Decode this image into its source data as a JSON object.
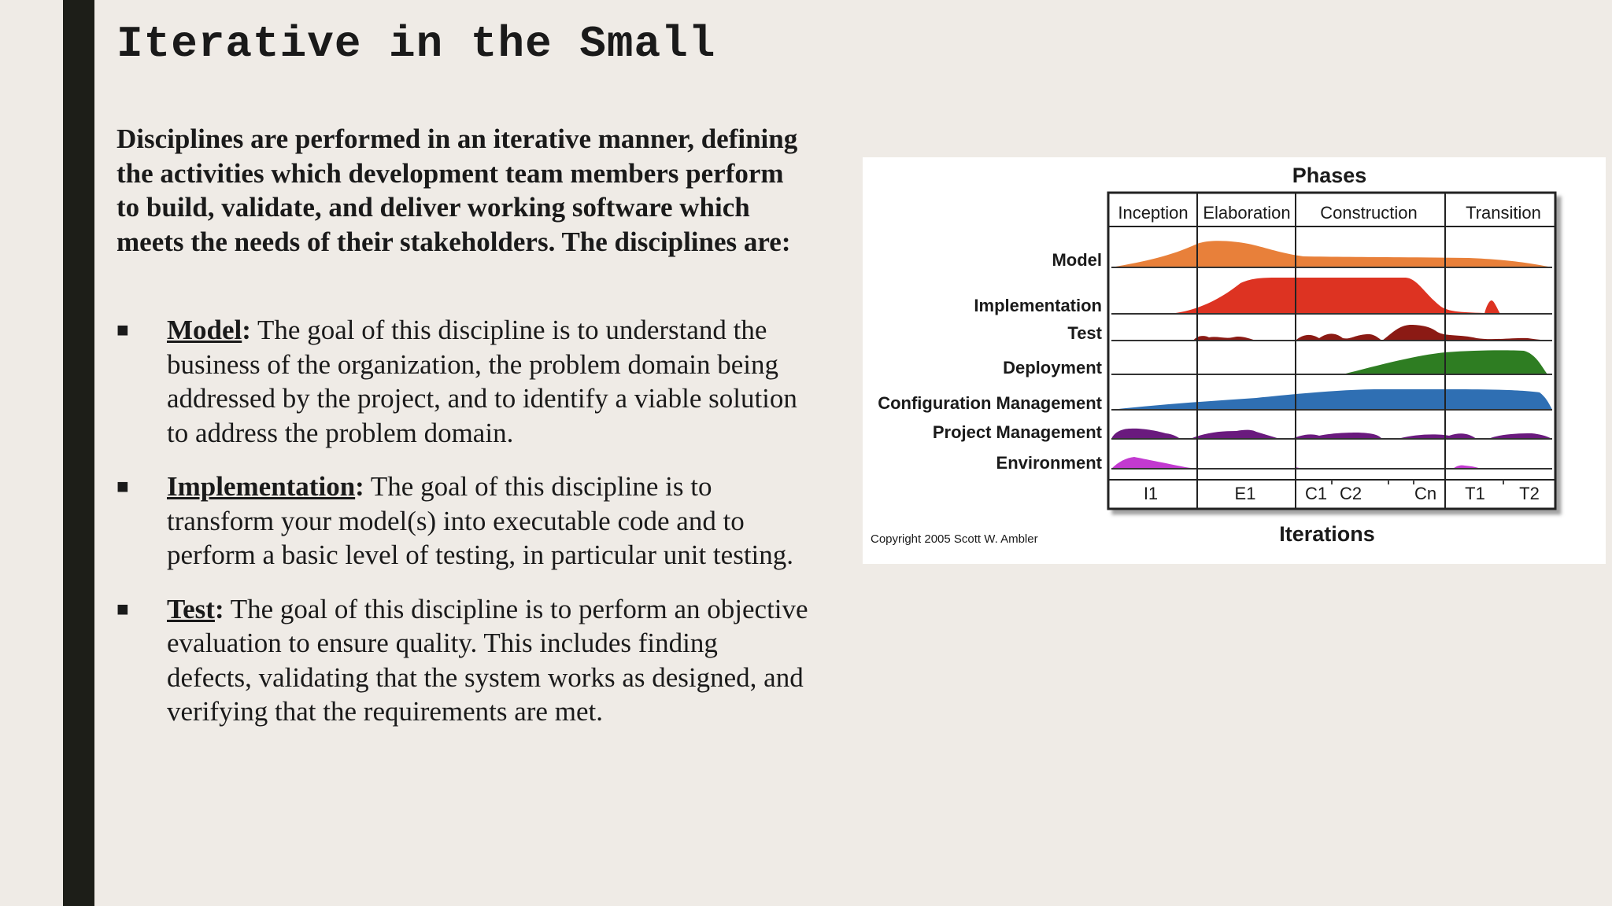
{
  "slide": {
    "title": "Iterative in the Small",
    "intro": "Disciplines are performed in an iterative manner, defining the activities which development team members perform to build, validate, and deliver working software which meets the needs of their stakeholders. The disciplines are:",
    "bullet_marker": "■",
    "bullets": [
      {
        "term": "Model",
        "colon": ":",
        "text": " The goal of this discipline is to understand the business of the organization, the problem domain being addressed by the project, and to identify a viable solution to address the problem domain."
      },
      {
        "term": "Implementation",
        "colon": ":",
        "text": " The goal of this discipline is to transform your model(s) into executable code and to perform a basic level of testing, in particular unit testing."
      },
      {
        "term": "Test",
        "colon": ":",
        "text": " The goal of this discipline is to perform an objective evaluation to ensure quality. This includes finding defects, validating that the system works as designed, and verifying that the requirements are met."
      }
    ]
  },
  "figure": {
    "title": "Phases",
    "phases": [
      "Inception",
      "Elaboration",
      "Construction",
      "Transition"
    ],
    "disciplines": [
      "Model",
      "Implementation",
      "Test",
      "Deployment",
      "Configuration Management",
      "Project Management",
      "Environment"
    ],
    "iterations": [
      "I1",
      "E1",
      "C1",
      "C2",
      "Cn",
      "T1",
      "T2"
    ],
    "xlabel": "Iterations",
    "copyright": "Copyright 2005 Scott W. Ambler",
    "colors": {
      "model": "#e8803a",
      "implementation": "#dd3322",
      "test": "#8b1a14",
      "deployment": "#2e7d22",
      "configuration": "#2f6fb3",
      "project": "#6a1a7e",
      "environment": "#c23ad0"
    }
  }
}
